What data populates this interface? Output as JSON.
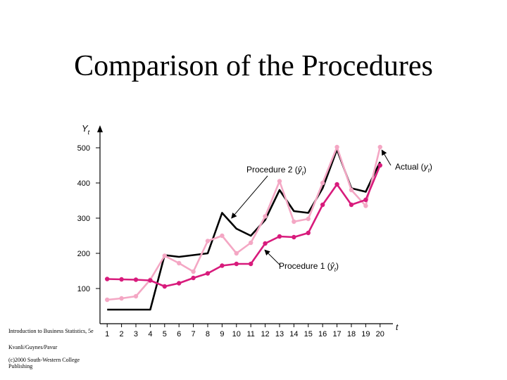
{
  "slide": {
    "title": "Comparison of the Procedures",
    "credits": [
      "Introduction to Business Statistics, 5e",
      "Kvanli/Guynes/Pavur",
      "(c)2000 South-Western College Publishing"
    ]
  },
  "chart_data": {
    "type": "line",
    "title": "",
    "ylabel": "Y",
    "ylabel_subscript": "t",
    "xlabel": "t",
    "x": [
      1,
      2,
      3,
      4,
      5,
      6,
      7,
      8,
      9,
      10,
      11,
      12,
      13,
      14,
      15,
      16,
      17,
      18,
      19,
      20
    ],
    "yticks": [
      100,
      200,
      300,
      400,
      500
    ],
    "ylim": [
      0,
      540
    ],
    "xlim": [
      0.5,
      20.6
    ],
    "grid": false,
    "series": [
      {
        "name": "Actual (y_t)",
        "color": "#000000",
        "markers": false,
        "values": [
          40,
          40,
          40,
          40,
          195,
          190,
          195,
          200,
          315,
          270,
          250,
          295,
          380,
          320,
          315,
          385,
          495,
          385,
          375,
          460
        ]
      },
      {
        "name": "Procedure 2 (ŷ_t)",
        "color": "#f4a7c4",
        "markers": true,
        "values": [
          68,
          72,
          78,
          125,
          193,
          172,
          148,
          235,
          250,
          200,
          230,
          305,
          405,
          290,
          298,
          400,
          502,
          380,
          335,
          502
        ]
      },
      {
        "name": "Procedure 1 (ŷ_t)",
        "color": "#d81b7c",
        "markers": true,
        "values": [
          127,
          126,
          125,
          123,
          106,
          115,
          130,
          143,
          165,
          170,
          170,
          228,
          248,
          246,
          258,
          338,
          396,
          338,
          352,
          450
        ]
      }
    ],
    "annotations": [
      {
        "label": "Actual",
        "sym": "y",
        "sub": "t",
        "hat": false,
        "target": {
          "series": 1,
          "x": 20
        }
      },
      {
        "label": "Procedure 2",
        "sym": "y",
        "sub": "t",
        "hat": true,
        "target": {
          "series": 0,
          "x": 9.5
        }
      },
      {
        "label": "Procedure 1",
        "sym": "y",
        "sub": "t",
        "hat": true,
        "target": {
          "series": 2,
          "x": 11.8
        }
      }
    ]
  }
}
